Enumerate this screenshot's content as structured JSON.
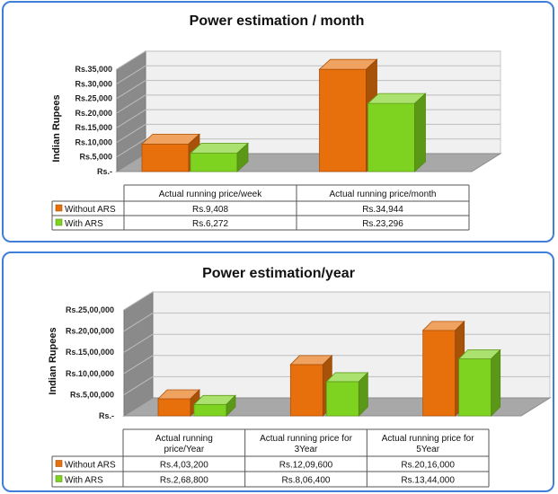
{
  "colors": {
    "without": "#e8700c",
    "with": "#7ed321",
    "panel_border": "#3f7fd8"
  },
  "chart_data": [
    {
      "type": "bar",
      "title": "Power estimation  / month",
      "ylabel": "Indian Rupees",
      "ylim": [
        0,
        35000
      ],
      "ytick_labels": [
        "Rs.-",
        "Rs.5,000",
        "Rs.10,000",
        "Rs.15,000",
        "Rs.20,000",
        "Rs.25,000",
        "Rs.30,000",
        "Rs.35,000"
      ],
      "categories": [
        [
          "Actual running price/week"
        ],
        [
          "Actual running price/month"
        ]
      ],
      "series": [
        {
          "name": "Without ARS",
          "values": [
            9408,
            34944
          ],
          "labels": [
            "Rs.9,408",
            "Rs.34,944"
          ]
        },
        {
          "name": "With ARS",
          "values": [
            6272,
            23296
          ],
          "labels": [
            "Rs.6,272",
            "Rs.23,296"
          ]
        }
      ]
    },
    {
      "type": "bar",
      "title": "Power estimation/year",
      "ylabel": "Indian Rupees",
      "ylim": [
        0,
        2500000
      ],
      "ytick_labels": [
        "Rs.-",
        "Rs.5,00,000",
        "Rs.10,00,000",
        "Rs.15,00,000",
        "Rs.20,00,000",
        "Rs.25,00,000"
      ],
      "categories": [
        [
          "Actual running",
          "price/Year"
        ],
        [
          "Actual running price for",
          "3Year"
        ],
        [
          "Actual running price for",
          "5Year"
        ]
      ],
      "series": [
        {
          "name": "Without ARS",
          "values": [
            403200,
            1209600,
            2016000
          ],
          "labels": [
            "Rs.4,03,200",
            "Rs.12,09,600",
            "Rs.20,16,000"
          ]
        },
        {
          "name": "With ARS",
          "values": [
            268800,
            806400,
            1344000
          ],
          "labels": [
            "Rs.2,68,800",
            "Rs.8,06,400",
            "Rs.13,44,000"
          ]
        }
      ]
    }
  ]
}
